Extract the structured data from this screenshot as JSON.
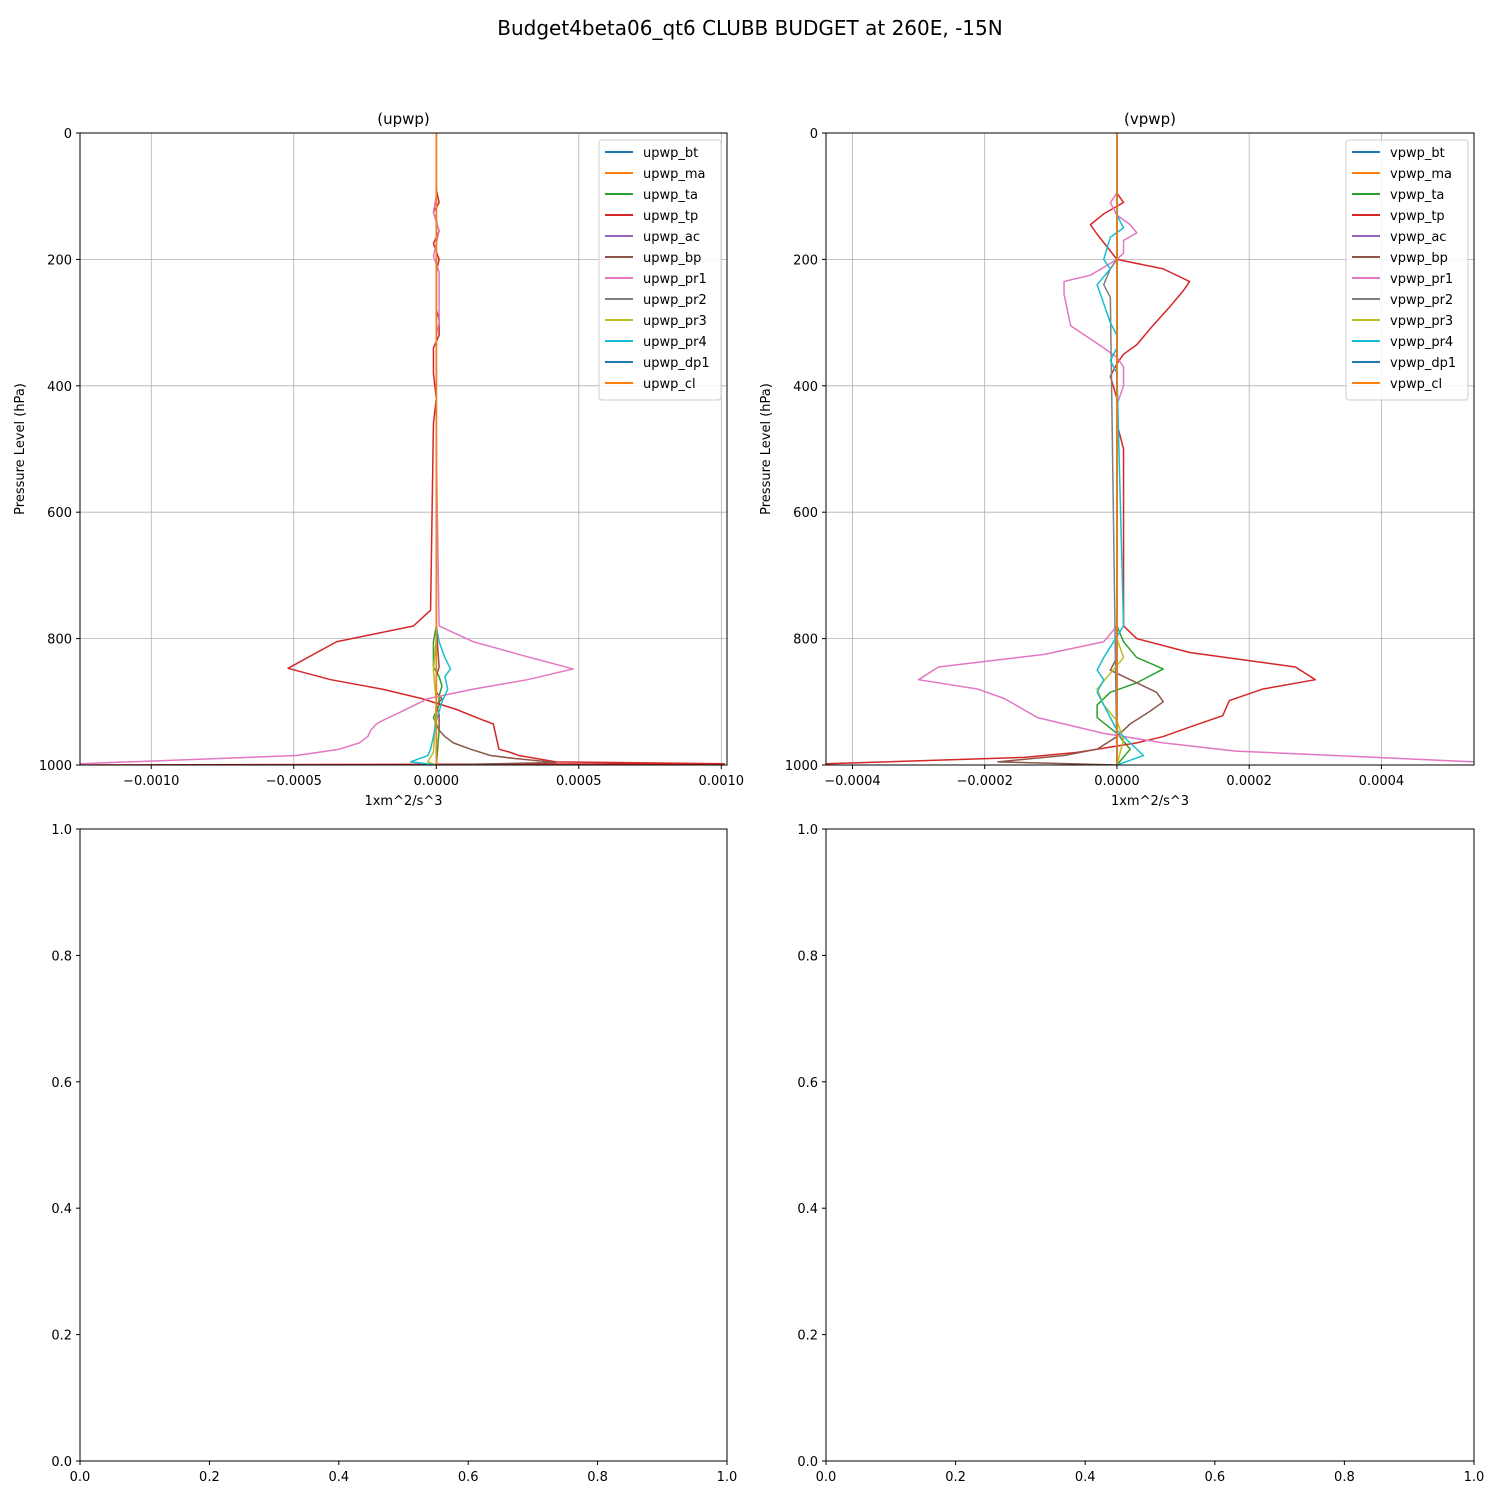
{
  "figure": {
    "title": "Budget4beta06_qt6 CLUBB BUDGET at 260E, -15N"
  },
  "chart_data": [
    {
      "type": "line",
      "title": "(upwp)",
      "xlabel": "1xm^2/s^3",
      "ylabel": "Pressure Level (hPa)",
      "xlim": [
        -0.00125,
        0.00102
      ],
      "ylim": [
        1000,
        0
      ],
      "y_inverted": true,
      "grid": true,
      "legend": "top-right",
      "xticks": [
        -0.001,
        -0.0005,
        0.0,
        0.0005,
        0.001
      ],
      "xtick_labels": [
        "−0.0010",
        "−0.0005",
        "0.0000",
        "0.0005",
        "0.0010"
      ],
      "yticks": [
        0,
        200,
        400,
        600,
        800,
        1000
      ],
      "ytick_labels": [
        "0",
        "200",
        "400",
        "600",
        "800",
        "1000"
      ],
      "series": [
        {
          "name": "upwp_bt",
          "color": "#1f77b4",
          "x": [
            0,
            0,
            0,
            0,
            0
          ],
          "y": [
            0,
            200,
            500,
            800,
            1000
          ]
        },
        {
          "name": "upwp_ma",
          "color": "#ff7f0e",
          "x": [
            0,
            0,
            0,
            0,
            0
          ],
          "y": [
            0,
            200,
            500,
            800,
            1000
          ]
        },
        {
          "name": "upwp_ta",
          "color": "#2ca02c",
          "x": [
            0,
            0,
            0,
            -1e-05,
            -1e-05,
            1e-05,
            2e-05,
            1e-05,
            1e-05,
            -1e-05,
            1e-05,
            0
          ],
          "y": [
            0,
            400,
            780,
            805,
            845,
            860,
            875,
            890,
            905,
            925,
            945,
            1000
          ]
        },
        {
          "name": "upwp_tp",
          "color": "#d62728",
          "x": [
            0,
            0,
            1e-05,
            -1e-05,
            0,
            1e-05,
            -1e-05,
            1e-05,
            0,
            0,
            0,
            0,
            0,
            1e-05,
            1e-05,
            -1e-05,
            -1e-05,
            -1e-05,
            0,
            -1e-05,
            -2e-05,
            -8e-05,
            -0.00035,
            -0.00052,
            -0.00037,
            -0.00019,
            -5e-05,
            7e-05,
            0.00017,
            0.0002,
            0.00021,
            0.00022,
            0.00026,
            0.00029,
            0.00042,
            0.00101,
            -0.00125
          ],
          "y": [
            0,
            90,
            110,
            125,
            140,
            155,
            175,
            200,
            220,
            230,
            245,
            260,
            280,
            295,
            320,
            340,
            360,
            380,
            420,
            460,
            755,
            780,
            805,
            847,
            865,
            880,
            895,
            912,
            930,
            935,
            955,
            975,
            980,
            985,
            995,
            998,
            1000
          ]
        },
        {
          "name": "upwp_ac",
          "color": "#9467bd",
          "x": [
            0,
            0,
            0
          ],
          "y": [
            0,
            500,
            1000
          ]
        },
        {
          "name": "upwp_bp",
          "color": "#8c564b",
          "x": [
            0,
            0,
            1e-05,
            0,
            0,
            2e-05,
            0,
            1e-05,
            1e-05,
            3e-05,
            6e-05,
            0.00012,
            0.00019,
            0.00028,
            0.00042,
            0
          ],
          "y": [
            0,
            780,
            845,
            860,
            885,
            895,
            905,
            920,
            945,
            955,
            965,
            975,
            985,
            990,
            996,
            1000
          ]
        },
        {
          "name": "upwp_pr1",
          "color": "#e377c2",
          "x": [
            0,
            0,
            -1e-05,
            0,
            1e-05,
            0,
            -1e-05,
            1e-05,
            1e-05,
            1e-05,
            1e-05,
            0,
            0,
            1e-05,
            0.00013,
            0.00033,
            0.00048,
            0.00032,
            0.00013,
            -3e-05,
            -0.00012,
            -0.00019,
            -0.00021,
            -0.00023,
            -0.00024,
            -0.00027,
            -0.00034,
            -0.00049,
            -0.00125
          ],
          "y": [
            0,
            100,
            125,
            140,
            155,
            175,
            195,
            220,
            240,
            260,
            300,
            320,
            500,
            780,
            805,
            830,
            848,
            865,
            880,
            895,
            915,
            930,
            935,
            945,
            955,
            965,
            975,
            985,
            998
          ]
        },
        {
          "name": "upwp_pr2",
          "color": "#7f7f7f",
          "x": [
            0,
            0,
            0,
            0,
            0
          ],
          "y": [
            0,
            500,
            900,
            990,
            1000
          ]
        },
        {
          "name": "upwp_pr3",
          "color": "#bcbd22",
          "x": [
            0,
            0,
            -1e-05,
            0,
            -1e-05,
            -3e-05,
            0
          ],
          "y": [
            0,
            800,
            850,
            900,
            980,
            995,
            1000
          ]
        },
        {
          "name": "upwp_pr4",
          "color": "#17becf",
          "x": [
            0,
            0,
            1e-05,
            3e-05,
            5e-05,
            3e-05,
            4e-05,
            2e-05,
            0,
            -1e-05,
            -2e-05,
            -3e-05,
            -9e-05,
            0
          ],
          "y": [
            0,
            780,
            805,
            830,
            848,
            860,
            880,
            900,
            930,
            955,
            975,
            985,
            995,
            1000
          ]
        },
        {
          "name": "upwp_dp1",
          "color": "#1f77b4",
          "x": [
            0,
            0,
            0
          ],
          "y": [
            0,
            500,
            1000
          ]
        },
        {
          "name": "upwp_cl",
          "color": "#ff7f0e",
          "x": [
            0,
            0,
            0
          ],
          "y": [
            0,
            500,
            1000
          ]
        }
      ]
    },
    {
      "type": "line",
      "title": "(vpwp)",
      "xlabel": "1xm^2/s^3",
      "ylabel": "Pressure Level (hPa)",
      "xlim": [
        -0.00044,
        0.00054
      ],
      "ylim": [
        1000,
        0
      ],
      "y_inverted": true,
      "grid": true,
      "legend": "top-right",
      "xticks": [
        -0.0004,
        -0.0002,
        0.0,
        0.0002,
        0.0004
      ],
      "xtick_labels": [
        "−0.0004",
        "−0.0002",
        "0.0000",
        "0.0002",
        "0.0004"
      ],
      "yticks": [
        0,
        200,
        400,
        600,
        800,
        1000
      ],
      "ytick_labels": [
        "0",
        "200",
        "400",
        "600",
        "800",
        "1000"
      ],
      "series": [
        {
          "name": "vpwp_bt",
          "color": "#1f77b4",
          "x": [
            0,
            0,
            0,
            0
          ],
          "y": [
            0,
            300,
            700,
            1000
          ]
        },
        {
          "name": "vpwp_ma",
          "color": "#ff7f0e",
          "x": [
            0,
            0,
            0,
            0
          ],
          "y": [
            0,
            300,
            700,
            1000
          ]
        },
        {
          "name": "vpwp_ta",
          "color": "#2ca02c",
          "x": [
            0,
            0,
            1e-05,
            3e-05,
            7e-05,
            3e-05,
            -1e-05,
            -3e-05,
            -3e-05,
            0,
            2e-05,
            0
          ],
          "y": [
            0,
            780,
            805,
            830,
            848,
            870,
            885,
            905,
            925,
            950,
            975,
            1000
          ]
        },
        {
          "name": "vpwp_tp",
          "color": "#d62728",
          "x": [
            0,
            0,
            1e-05,
            -2e-05,
            -4e-05,
            -3e-05,
            0,
            7e-05,
            0.00011,
            0.0001,
            8e-05,
            5e-05,
            3e-05,
            1e-05,
            0,
            -1e-05,
            0,
            0,
            1e-05,
            1e-05,
            1e-05,
            3e-05,
            0.00011,
            0.00027,
            0.0003,
            0.00022,
            0.00017,
            0.00016,
            0.00011,
            7e-05,
            3e-05,
            -6e-05,
            -0.00014,
            -0.00044
          ],
          "y": [
            0,
            95,
            110,
            128,
            145,
            160,
            200,
            215,
            235,
            250,
            275,
            310,
            335,
            350,
            365,
            385,
            420,
            460,
            500,
            560,
            780,
            800,
            822,
            845,
            865,
            880,
            898,
            922,
            940,
            955,
            965,
            980,
            988,
            998
          ]
        },
        {
          "name": "vpwp_ac",
          "color": "#9467bd",
          "x": [
            0,
            0,
            0
          ],
          "y": [
            0,
            500,
            1000
          ]
        },
        {
          "name": "vpwp_bp",
          "color": "#8c564b",
          "x": [
            0,
            0,
            -1e-05,
            3e-05,
            6e-05,
            7e-05,
            5e-05,
            2e-05,
            0,
            -3e-05,
            -8e-05,
            -0.00018,
            0
          ],
          "y": [
            0,
            830,
            850,
            870,
            885,
            900,
            915,
            935,
            955,
            975,
            985,
            995,
            1000
          ]
        },
        {
          "name": "vpwp_pr1",
          "color": "#e377c2",
          "x": [
            0,
            0,
            -1e-05,
            0,
            2e-05,
            3e-05,
            1e-05,
            1e-05,
            0,
            -4e-05,
            -8e-05,
            -8e-05,
            -7e-05,
            -2e-05,
            0,
            1e-05,
            1e-05,
            0,
            0,
            -2e-05,
            -0.00011,
            -0.00027,
            -0.0003,
            -0.00021,
            -0.00017,
            -0.00012,
            -2e-05,
            7e-05,
            0.00018,
            0.00054
          ],
          "y": [
            0,
            95,
            110,
            130,
            145,
            158,
            170,
            190,
            200,
            225,
            235,
            255,
            305,
            340,
            355,
            370,
            400,
            430,
            780,
            805,
            825,
            845,
            865,
            880,
            895,
            925,
            950,
            965,
            978,
            995
          ]
        },
        {
          "name": "vpwp_pr2",
          "color": "#7f7f7f",
          "x": [
            0,
            0,
            -1e-05,
            -2e-05,
            -1e-05,
            0
          ],
          "y": [
            0,
            200,
            215,
            240,
            260,
            1000
          ]
        },
        {
          "name": "vpwp_pr3",
          "color": "#bcbd22",
          "x": [
            0,
            0,
            1e-05,
            -1e-05,
            -3e-05,
            -2e-05,
            0,
            1e-05,
            0
          ],
          "y": [
            0,
            800,
            830,
            855,
            880,
            905,
            930,
            960,
            1000
          ]
        },
        {
          "name": "vpwp_pr4",
          "color": "#17becf",
          "x": [
            0,
            0,
            1e-05,
            -1e-05,
            -2e-05,
            -1e-05,
            -3e-05,
            -2e-05,
            -1e-05,
            0,
            0,
            -1e-05,
            0,
            1e-05,
            -2e-05,
            -3e-05,
            -2e-05,
            -3e-05,
            -2e-05,
            -1e-05,
            0,
            2e-05,
            4e-05,
            0
          ],
          "y": [
            0,
            130,
            150,
            165,
            200,
            215,
            240,
            270,
            300,
            320,
            340,
            360,
            380,
            780,
            830,
            850,
            865,
            885,
            905,
            925,
            945,
            965,
            985,
            1000
          ]
        },
        {
          "name": "vpwp_dp1",
          "color": "#1f77b4",
          "x": [
            0,
            0,
            0
          ],
          "y": [
            0,
            500,
            1000
          ]
        },
        {
          "name": "vpwp_cl",
          "color": "#ff7f0e",
          "x": [
            0,
            0,
            0
          ],
          "y": [
            0,
            500,
            1000
          ]
        }
      ]
    },
    {
      "type": "line",
      "title": "",
      "xlim": [
        0,
        1
      ],
      "ylim": [
        0,
        1
      ],
      "grid": false,
      "xticks": [
        0,
        0.2,
        0.4,
        0.6,
        0.8,
        1.0
      ],
      "xtick_labels": [
        "0.0",
        "0.2",
        "0.4",
        "0.6",
        "0.8",
        "1.0"
      ],
      "yticks": [
        0,
        0.2,
        0.4,
        0.6,
        0.8,
        1.0
      ],
      "ytick_labels": [
        "0.0",
        "0.2",
        "0.4",
        "0.6",
        "0.8",
        "1.0"
      ],
      "series": []
    },
    {
      "type": "line",
      "title": "",
      "xlim": [
        0,
        1
      ],
      "ylim": [
        0,
        1
      ],
      "grid": false,
      "xticks": [
        0,
        0.2,
        0.4,
        0.6,
        0.8,
        1.0
      ],
      "xtick_labels": [
        "0.0",
        "0.2",
        "0.4",
        "0.6",
        "0.8",
        "1.0"
      ],
      "yticks": [
        0,
        0.2,
        0.4,
        0.6,
        0.8,
        1.0
      ],
      "ytick_labels": [
        "0.0",
        "0.2",
        "0.4",
        "0.6",
        "0.8",
        "1.0"
      ],
      "series": []
    }
  ]
}
